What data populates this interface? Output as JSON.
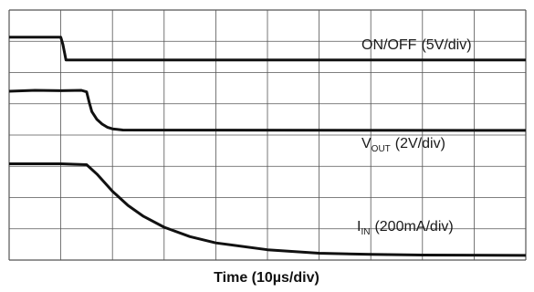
{
  "chart_data": {
    "type": "line",
    "title": "",
    "xlabel": "Time (10µs/div)",
    "ylabel": "",
    "grid": true,
    "grid_divisions": {
      "x": 10,
      "y": 8
    },
    "xlim": [
      0,
      10
    ],
    "ylim": [
      0,
      8
    ],
    "x_unit": "div",
    "y_unit": "div",
    "series": [
      {
        "name_main": "ON/OFF",
        "name_sub": "",
        "scale": "(5V/div)",
        "x": [
          0,
          1.0,
          1.04,
          1.1,
          10
        ],
        "y": [
          7.13,
          7.13,
          6.9,
          6.4,
          6.4
        ]
      },
      {
        "name_main": "V",
        "name_sub": "OUT",
        "scale": "(2V/div)",
        "x": [
          0,
          0.5,
          1.0,
          1.4,
          1.5,
          1.55,
          1.6,
          1.7,
          1.8,
          1.9,
          2.0,
          2.2,
          10
        ],
        "y": [
          5.4,
          5.43,
          5.42,
          5.43,
          5.38,
          5.05,
          4.75,
          4.5,
          4.35,
          4.25,
          4.2,
          4.16,
          4.15
        ]
      },
      {
        "name_main": "I",
        "name_sub": "IN",
        "scale": "(200mA/div)",
        "x": [
          0,
          1.0,
          1.5,
          1.7,
          2.0,
          2.3,
          2.6,
          3.0,
          3.5,
          4.0,
          5.0,
          6.0,
          7.0,
          8.0,
          10
        ],
        "y": [
          3.08,
          3.08,
          3.05,
          2.75,
          2.2,
          1.75,
          1.4,
          1.05,
          0.75,
          0.55,
          0.33,
          0.22,
          0.18,
          0.16,
          0.15
        ]
      }
    ]
  }
}
